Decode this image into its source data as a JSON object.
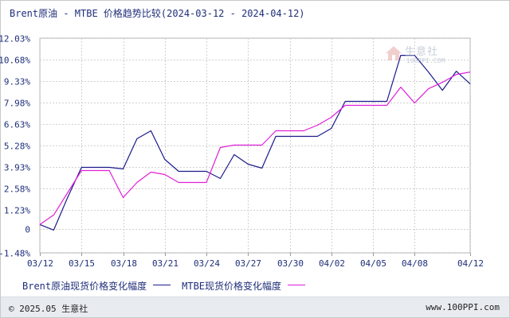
{
  "chart_data": {
    "type": "line",
    "title": "Brent原油 - MTBE 价格趋势比较(2024-03-12 - 2024-04-12)",
    "ylim": [
      -1.48,
      12.03
    ],
    "yticks": [
      "12.03%",
      "10.68%",
      "9.33%",
      "7.98%",
      "6.63%",
      "5.28%",
      "3.93%",
      "2.58%",
      "1.23%",
      "0",
      "-1.48%"
    ],
    "ytick_values": [
      12.03,
      10.68,
      9.33,
      7.98,
      6.63,
      5.28,
      3.93,
      2.58,
      1.23,
      0,
      -1.48
    ],
    "x": [
      "03/12",
      "03/13",
      "03/14",
      "03/15",
      "03/16",
      "03/17",
      "03/18",
      "03/19",
      "03/20",
      "03/21",
      "03/22",
      "03/23",
      "03/24",
      "03/25",
      "03/26",
      "03/27",
      "03/28",
      "03/29",
      "03/30",
      "03/31",
      "04/01",
      "04/02",
      "04/03",
      "04/04",
      "04/05",
      "04/06",
      "04/07",
      "04/08",
      "04/09",
      "04/10",
      "04/11",
      "04/12"
    ],
    "xticks": [
      "03/12",
      "03/15",
      "03/18",
      "03/21",
      "03/24",
      "03/27",
      "03/30",
      "04/02",
      "04/05",
      "04/08",
      "04/12"
    ],
    "grid": true,
    "legend_position": "bottom-left",
    "series": [
      {
        "name": "Brent原油现货价格变化幅度",
        "color": "#1a1a8c",
        "values": [
          0.3,
          -0.05,
          2.0,
          3.9,
          3.9,
          3.9,
          3.8,
          5.7,
          6.2,
          4.4,
          3.65,
          3.65,
          3.65,
          3.2,
          4.7,
          4.1,
          3.85,
          5.85,
          5.85,
          5.85,
          5.85,
          6.35,
          8.05,
          8.05,
          8.05,
          8.05,
          10.95,
          10.95,
          9.9,
          8.75,
          9.95,
          9.15
        ]
      },
      {
        "name": "MTBE现货价格变化幅度",
        "color": "#e020d8",
        "values": [
          0.3,
          0.9,
          2.3,
          3.7,
          3.7,
          3.7,
          2.0,
          2.95,
          3.6,
          3.45,
          2.95,
          2.95,
          2.95,
          5.15,
          5.3,
          5.3,
          5.3,
          6.2,
          6.2,
          6.2,
          6.55,
          7.05,
          7.8,
          7.8,
          7.8,
          7.8,
          8.95,
          7.95,
          8.85,
          9.25,
          9.75,
          9.9
        ]
      }
    ]
  },
  "legend": {
    "brent_label": "Brent原油现货价格变化幅度",
    "mtbe_label": "MTBE现货价格变化幅度"
  },
  "watermark": {
    "name": "生意社",
    "url": "100PPI.COM"
  },
  "footer": {
    "copyright": "© 2025.05 生意社",
    "site": "www.100PPI.com"
  }
}
